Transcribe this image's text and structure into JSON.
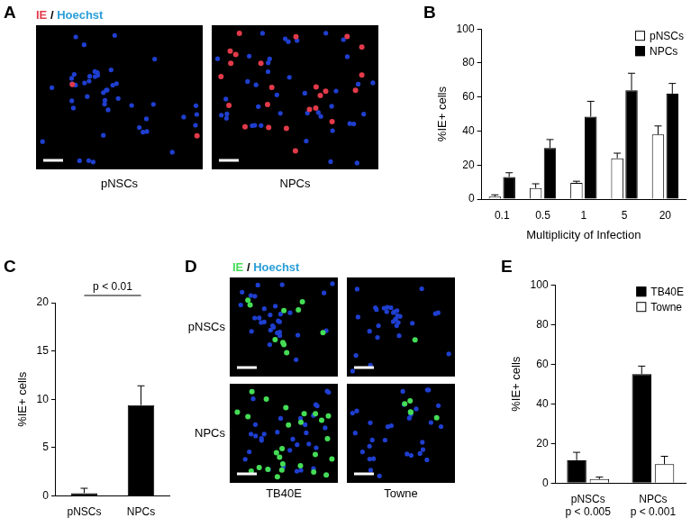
{
  "chart_data": [
    {
      "panel": "B",
      "type": "bar",
      "y_label": "%IE+ cells",
      "x_label": "Multiplicity of Infection",
      "categories": [
        "0.1",
        "0.5",
        "1",
        "5",
        "20"
      ],
      "series": [
        {
          "name": "pNSCs",
          "color": "#ffffff",
          "values": [
            1.5,
            6.5,
            9.5,
            24,
            38
          ],
          "errors": [
            1,
            2.5,
            1,
            3,
            5
          ]
        },
        {
          "name": "NPCs",
          "color": "#000000",
          "values": [
            13,
            30,
            48.5,
            64,
            62
          ],
          "errors": [
            2.5,
            5,
            9,
            10,
            6
          ]
        }
      ],
      "ylim": [
        0,
        100
      ],
      "yticks": [
        0,
        20,
        40,
        60,
        80,
        100
      ],
      "grid": false,
      "legend": "top-right"
    },
    {
      "panel": "C",
      "type": "bar",
      "y_label": "%IE+ cells",
      "categories": [
        "pNSCs",
        "NPCs"
      ],
      "values": [
        0.3,
        9.4
      ],
      "errors": [
        0.5,
        2
      ],
      "color": "#000000",
      "ylim": [
        0,
        20
      ],
      "yticks": [
        0,
        5,
        10,
        15,
        20
      ],
      "grid": false,
      "annotations": [
        {
          "text": "p < 0.01",
          "from": "pNSCs",
          "to": "NPCs"
        }
      ]
    },
    {
      "panel": "E",
      "type": "bar",
      "y_label": "%IE+ cells",
      "categories": [
        "pNSCs",
        "NPCs"
      ],
      "category_notes": [
        "p < 0.005",
        "p < 0.001"
      ],
      "series": [
        {
          "name": "TB40E",
          "color": "#000000",
          "values": [
            11.5,
            55
          ],
          "errors": [
            4,
            4
          ]
        },
        {
          "name": "Towne",
          "color": "#ffffff",
          "values": [
            2,
            9.5
          ],
          "errors": [
            1,
            4
          ]
        }
      ],
      "ylim": [
        0,
        100
      ],
      "yticks": [
        0,
        20,
        40,
        60,
        80,
        100
      ],
      "grid": false,
      "legend": "top-right"
    }
  ],
  "images": [
    {
      "panel": "A",
      "title_parts": [
        {
          "text": "IE",
          "color": "#e23a4a"
        },
        {
          "text": " / ",
          "color": "#000000"
        },
        {
          "text": "Hoechst",
          "color": "#2b9ed8"
        }
      ],
      "columns": [
        "pNSCs",
        "NPCs"
      ]
    },
    {
      "panel": "D",
      "title_parts": [
        {
          "text": "IE",
          "color": "#44dd55"
        },
        {
          "text": " / ",
          "color": "#000000"
        },
        {
          "text": "Hoechst",
          "color": "#2b9ed8"
        }
      ],
      "rows": [
        "pNSCs",
        "NPCs"
      ],
      "columns": [
        "TB40E",
        "Towne"
      ]
    }
  ]
}
